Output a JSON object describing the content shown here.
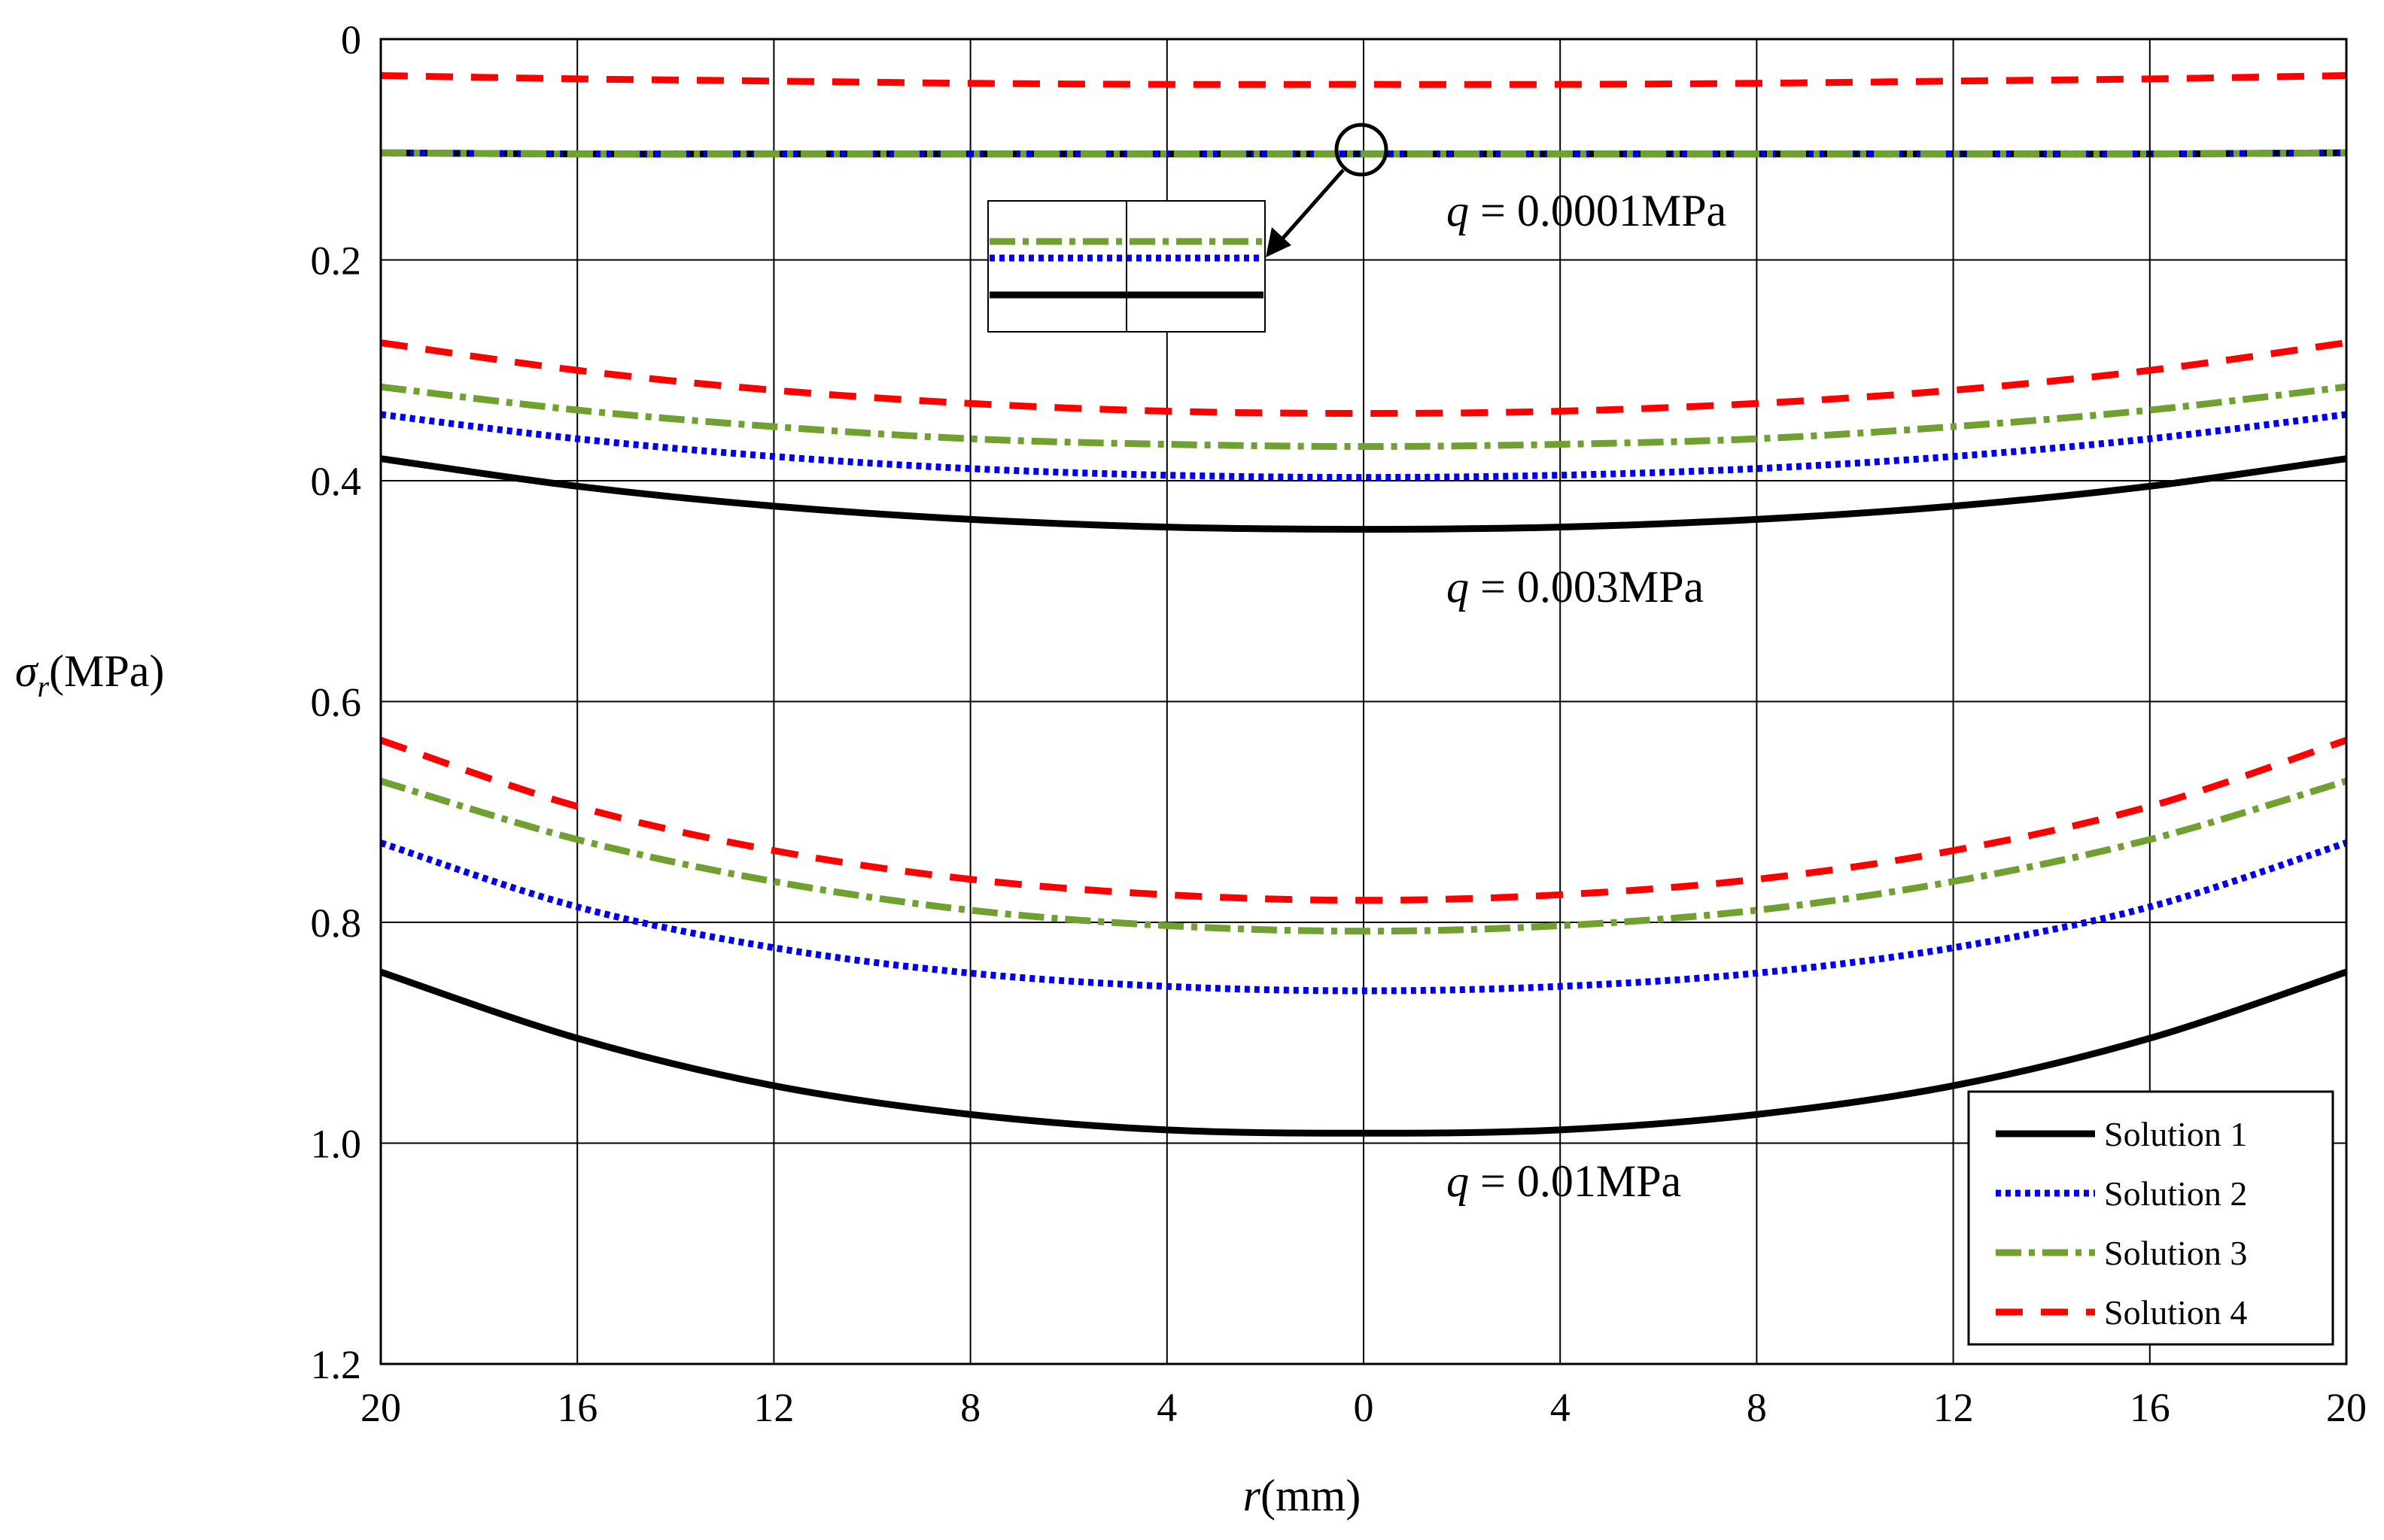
{
  "chart_data": {
    "type": "line",
    "title": "",
    "xlabel": {
      "symbol": "r",
      "unit": "(mm)"
    },
    "ylabel": {
      "symbol": "σ",
      "subscript": "r",
      "unit": "(MPa)"
    },
    "xlim": [
      -20,
      20
    ],
    "ylim": [
      0,
      1.2
    ],
    "y_reversed": true,
    "grid": true,
    "x_ticks": [
      -20,
      -16,
      -12,
      -8,
      -4,
      0,
      4,
      8,
      12,
      16,
      20
    ],
    "x_tick_labels": [
      "20",
      "16",
      "12",
      "8",
      "4",
      "0",
      "4",
      "8",
      "12",
      "16",
      "20"
    ],
    "y_ticks": [
      0,
      0.2,
      0.4,
      0.6,
      0.8,
      1.0,
      1.2
    ],
    "y_tick_labels": [
      "0",
      "0.2",
      "0.4",
      "0.6",
      "0.8",
      "1.0",
      "1.2"
    ],
    "x": [
      -20,
      -16,
      -12,
      -8,
      -4,
      0,
      4,
      8,
      12,
      16,
      20
    ],
    "colors": {
      "solution1": "#000000",
      "solution2": "#0000ee",
      "solution3": "#70a030",
      "solution4": "#ff0000"
    },
    "legend": {
      "position": "bottom-right",
      "entries": [
        {
          "label": "Solution 1",
          "series": "Solution 1"
        },
        {
          "label": "Solution 2",
          "series": "Solution 2"
        },
        {
          "label": "Solution 3",
          "series": "Solution 3"
        },
        {
          "label": "Solution 4",
          "series": "Solution 4"
        }
      ]
    },
    "groups": [
      {
        "load_label": {
          "symbol": "q",
          "text": " = 0.0001MPa"
        },
        "series": [
          {
            "name": "Solution 1",
            "style": "solid",
            "values": [
              0.103,
              0.104,
              0.104,
              0.104,
              0.104,
              0.104,
              0.104,
              0.104,
              0.104,
              0.104,
              0.103
            ]
          },
          {
            "name": "Solution 2",
            "style": "dotted",
            "values": [
              0.103,
              0.104,
              0.104,
              0.104,
              0.104,
              0.104,
              0.104,
              0.104,
              0.104,
              0.104,
              0.103
            ]
          },
          {
            "name": "Solution 3",
            "style": "dashdot",
            "values": [
              0.103,
              0.104,
              0.104,
              0.104,
              0.104,
              0.104,
              0.104,
              0.104,
              0.104,
              0.104,
              0.103
            ]
          },
          {
            "name": "Solution 4",
            "style": "dashed",
            "values": [
              0.033,
              0.036,
              0.038,
              0.04,
              0.041,
              0.041,
              0.041,
              0.04,
              0.038,
              0.036,
              0.033
            ]
          }
        ]
      },
      {
        "load_label": {
          "symbol": "q",
          "text": " = 0.003MPa"
        },
        "series": [
          {
            "name": "Solution 1",
            "style": "solid",
            "values": [
              0.38,
              0.405,
              0.423,
              0.435,
              0.442,
              0.444,
              0.442,
              0.435,
              0.423,
              0.405,
              0.38
            ]
          },
          {
            "name": "Solution 2",
            "style": "dotted",
            "values": [
              0.34,
              0.362,
              0.378,
              0.389,
              0.395,
              0.397,
              0.395,
              0.389,
              0.378,
              0.362,
              0.34
            ]
          },
          {
            "name": "Solution 3",
            "style": "dashdot",
            "values": [
              0.315,
              0.336,
              0.351,
              0.362,
              0.367,
              0.369,
              0.367,
              0.362,
              0.351,
              0.336,
              0.315
            ]
          },
          {
            "name": "Solution 4",
            "style": "dashed",
            "values": [
              0.275,
              0.3,
              0.318,
              0.33,
              0.337,
              0.339,
              0.337,
              0.33,
              0.318,
              0.3,
              0.275
            ]
          }
        ]
      },
      {
        "load_label": {
          "symbol": "q",
          "text": " = 0.01MPa"
        },
        "series": [
          {
            "name": "Solution 1",
            "style": "solid",
            "values": [
              0.845,
              0.905,
              0.948,
              0.974,
              0.988,
              0.991,
              0.988,
              0.974,
              0.948,
              0.905,
              0.845
            ]
          },
          {
            "name": "Solution 2",
            "style": "dotted",
            "values": [
              0.728,
              0.786,
              0.823,
              0.846,
              0.858,
              0.862,
              0.858,
              0.846,
              0.823,
              0.786,
              0.728
            ]
          },
          {
            "name": "Solution 3",
            "style": "dashdot",
            "values": [
              0.672,
              0.725,
              0.763,
              0.789,
              0.803,
              0.808,
              0.803,
              0.789,
              0.763,
              0.725,
              0.672
            ]
          },
          {
            "name": "Solution 4",
            "style": "dashed",
            "values": [
              0.635,
              0.695,
              0.735,
              0.761,
              0.775,
              0.78,
              0.775,
              0.761,
              0.735,
              0.695,
              0.635
            ]
          }
        ]
      }
    ]
  }
}
